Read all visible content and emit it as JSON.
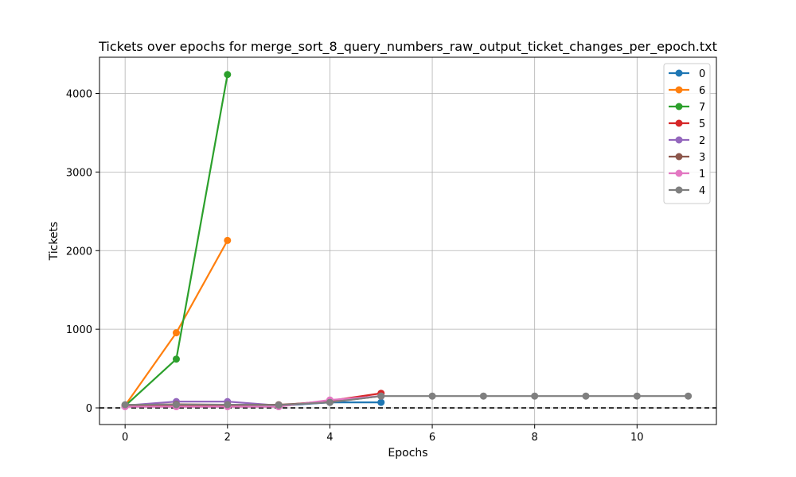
{
  "chart_data": {
    "type": "line",
    "title": "Tickets over epochs for merge_sort_8_query_numbers_raw_output_ticket_changes_per_epoch.txt",
    "xlabel": "Epochs",
    "ylabel": "Tickets",
    "xlim": [
      -0.5,
      11.55
    ],
    "ylim": [
      -212,
      4460
    ],
    "xticks": [
      0,
      2,
      4,
      6,
      8,
      10
    ],
    "yticks": [
      0,
      1000,
      2000,
      3000,
      4000
    ],
    "grid": true,
    "legend_position": "top-right",
    "reference_line": {
      "y": 0,
      "style": "dashed",
      "color": "#000000"
    },
    "series": [
      {
        "name": "0",
        "color": "#1f77b4",
        "x": [
          0,
          1,
          2,
          3,
          4,
          5
        ],
        "y": [
          20,
          30,
          30,
          25,
          70,
          70
        ]
      },
      {
        "name": "6",
        "color": "#ff7f0e",
        "x": [
          0,
          1,
          2
        ],
        "y": [
          30,
          955,
          2130
        ]
      },
      {
        "name": "7",
        "color": "#2ca02c",
        "x": [
          0,
          1,
          2
        ],
        "y": [
          25,
          620,
          4240
        ]
      },
      {
        "name": "5",
        "color": "#d62728",
        "x": [
          0,
          1,
          2,
          3,
          4,
          5
        ],
        "y": [
          20,
          30,
          30,
          30,
          90,
          185
        ]
      },
      {
        "name": "2",
        "color": "#9467bd",
        "x": [
          0,
          1,
          2,
          3,
          4,
          5
        ],
        "y": [
          30,
          80,
          80,
          30,
          75,
          150
        ]
      },
      {
        "name": "3",
        "color": "#8c564b",
        "x": [
          0,
          1,
          2,
          3,
          4,
          5
        ],
        "y": [
          35,
          45,
          40,
          40,
          75,
          150
        ]
      },
      {
        "name": "1",
        "color": "#e377c2",
        "x": [
          0,
          1,
          2,
          3,
          4,
          5
        ],
        "y": [
          15,
          15,
          15,
          15,
          100,
          150
        ]
      },
      {
        "name": "4",
        "color": "#7f7f7f",
        "x": [
          0,
          1,
          2,
          3,
          4,
          5,
          6,
          7,
          8,
          9,
          10,
          11
        ],
        "y": [
          40,
          40,
          40,
          35,
          70,
          150,
          150,
          150,
          150,
          150,
          150,
          150
        ]
      }
    ]
  }
}
